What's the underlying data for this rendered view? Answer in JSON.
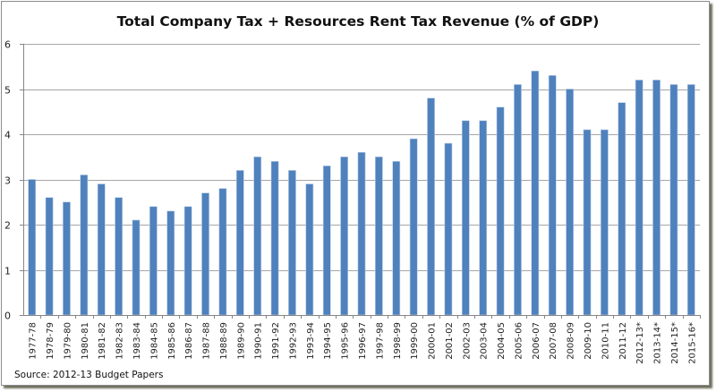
{
  "chart_data": {
    "type": "bar",
    "title": "Total Company Tax + Resources Rent Tax Revenue (% of GDP)",
    "xlabel": "",
    "ylabel": "",
    "ylim": [
      0,
      6
    ],
    "yticks": [
      "0",
      "1",
      "2",
      "3",
      "4",
      "5",
      "6"
    ],
    "grid": true,
    "legend": "none",
    "bar_color": "#4f81bd",
    "source_note": "Source: 2012-13 Budget Papers",
    "categories": [
      "1977-78",
      "1978-79",
      "1979-80",
      "1980-81",
      "1981-82",
      "1982-83",
      "1983-84",
      "1984-85",
      "1985-86",
      "1986-87",
      "1987-88",
      "1988-89",
      "1989-90",
      "1990-91",
      "1991-92",
      "1992-93",
      "1993-94",
      "1994-95",
      "1995-96",
      "1996-97",
      "1997-98",
      "1998-99",
      "1999-00",
      "2000-01",
      "2001-02",
      "2002-03",
      "2003-04",
      "2004-05",
      "2005-06",
      "2006-07",
      "2007-08",
      "2008-09",
      "2009-10",
      "2010-11",
      "2011-12",
      "2012-13*",
      "2013-14*",
      "2014-15*",
      "2015-16*"
    ],
    "series": [
      {
        "name": "Company Tax + Resources Rent Tax (% of GDP)",
        "values": [
          3.0,
          2.6,
          2.5,
          3.1,
          2.9,
          2.6,
          2.1,
          2.4,
          2.3,
          2.4,
          2.7,
          2.8,
          3.2,
          3.5,
          3.4,
          3.2,
          2.9,
          3.3,
          3.5,
          3.6,
          3.5,
          3.4,
          3.9,
          4.8,
          3.8,
          4.3,
          4.3,
          4.6,
          5.1,
          5.4,
          5.3,
          5.0,
          4.1,
          4.1,
          4.7,
          5.2,
          5.2,
          5.1,
          5.1
        ]
      }
    ]
  }
}
